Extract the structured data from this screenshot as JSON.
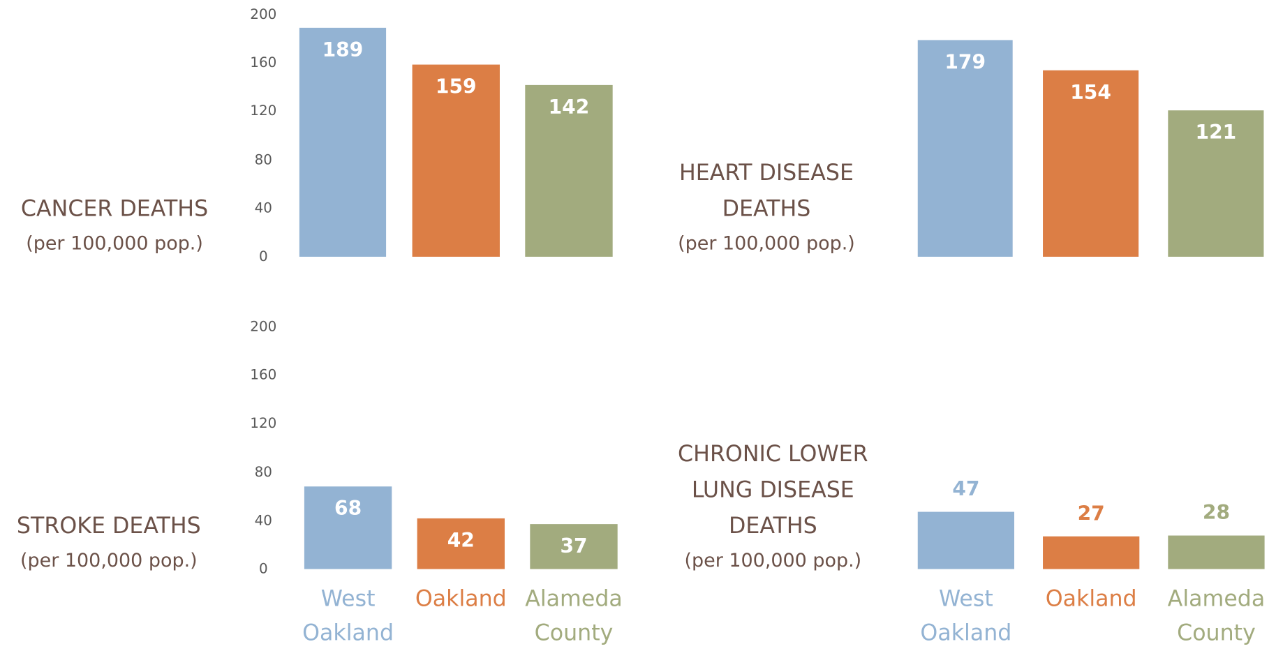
{
  "chart_data": [
    {
      "type": "bar",
      "title": "CANCER DEATHS",
      "subtitle": "(per 100,000 pop.)",
      "values": [
        189,
        159,
        142
      ],
      "colors": [
        "#93b3d3",
        "#dc7e45",
        "#a2ab7e"
      ],
      "ylim": [
        0,
        200
      ],
      "yticks": [
        0,
        40,
        80,
        120,
        160,
        200
      ],
      "label_position": "inside"
    },
    {
      "type": "bar",
      "title": "HEART DISEASE DEATHS",
      "subtitle": "(per 100,000 pop.)",
      "values": [
        179,
        154,
        121
      ],
      "colors": [
        "#93b3d3",
        "#dc7e45",
        "#a2ab7e"
      ],
      "ylim": [
        0,
        200
      ],
      "label_position": "inside"
    },
    {
      "type": "bar",
      "title": "STROKE DEATHS",
      "subtitle": "(per 100,000 pop.)",
      "categories": [
        "West Oakland",
        "Oakland",
        "Alameda County"
      ],
      "values": [
        68,
        42,
        37
      ],
      "colors": [
        "#93b3d3",
        "#dc7e45",
        "#a2ab7e"
      ],
      "ylim": [
        0,
        200
      ],
      "yticks": [
        0,
        40,
        80,
        120,
        160,
        200
      ],
      "label_position": "inside"
    },
    {
      "type": "bar",
      "title": "CHRONIC LOWER LUNG DISEASE DEATHS",
      "subtitle": "(per 100,000 pop.)",
      "categories": [
        "West Oakland",
        "Oakland",
        "Alameda County"
      ],
      "values": [
        47,
        27,
        28
      ],
      "colors": [
        "#93b3d3",
        "#dc7e45",
        "#a2ab7e"
      ],
      "ylim": [
        0,
        200
      ],
      "label_position": "outside"
    }
  ]
}
